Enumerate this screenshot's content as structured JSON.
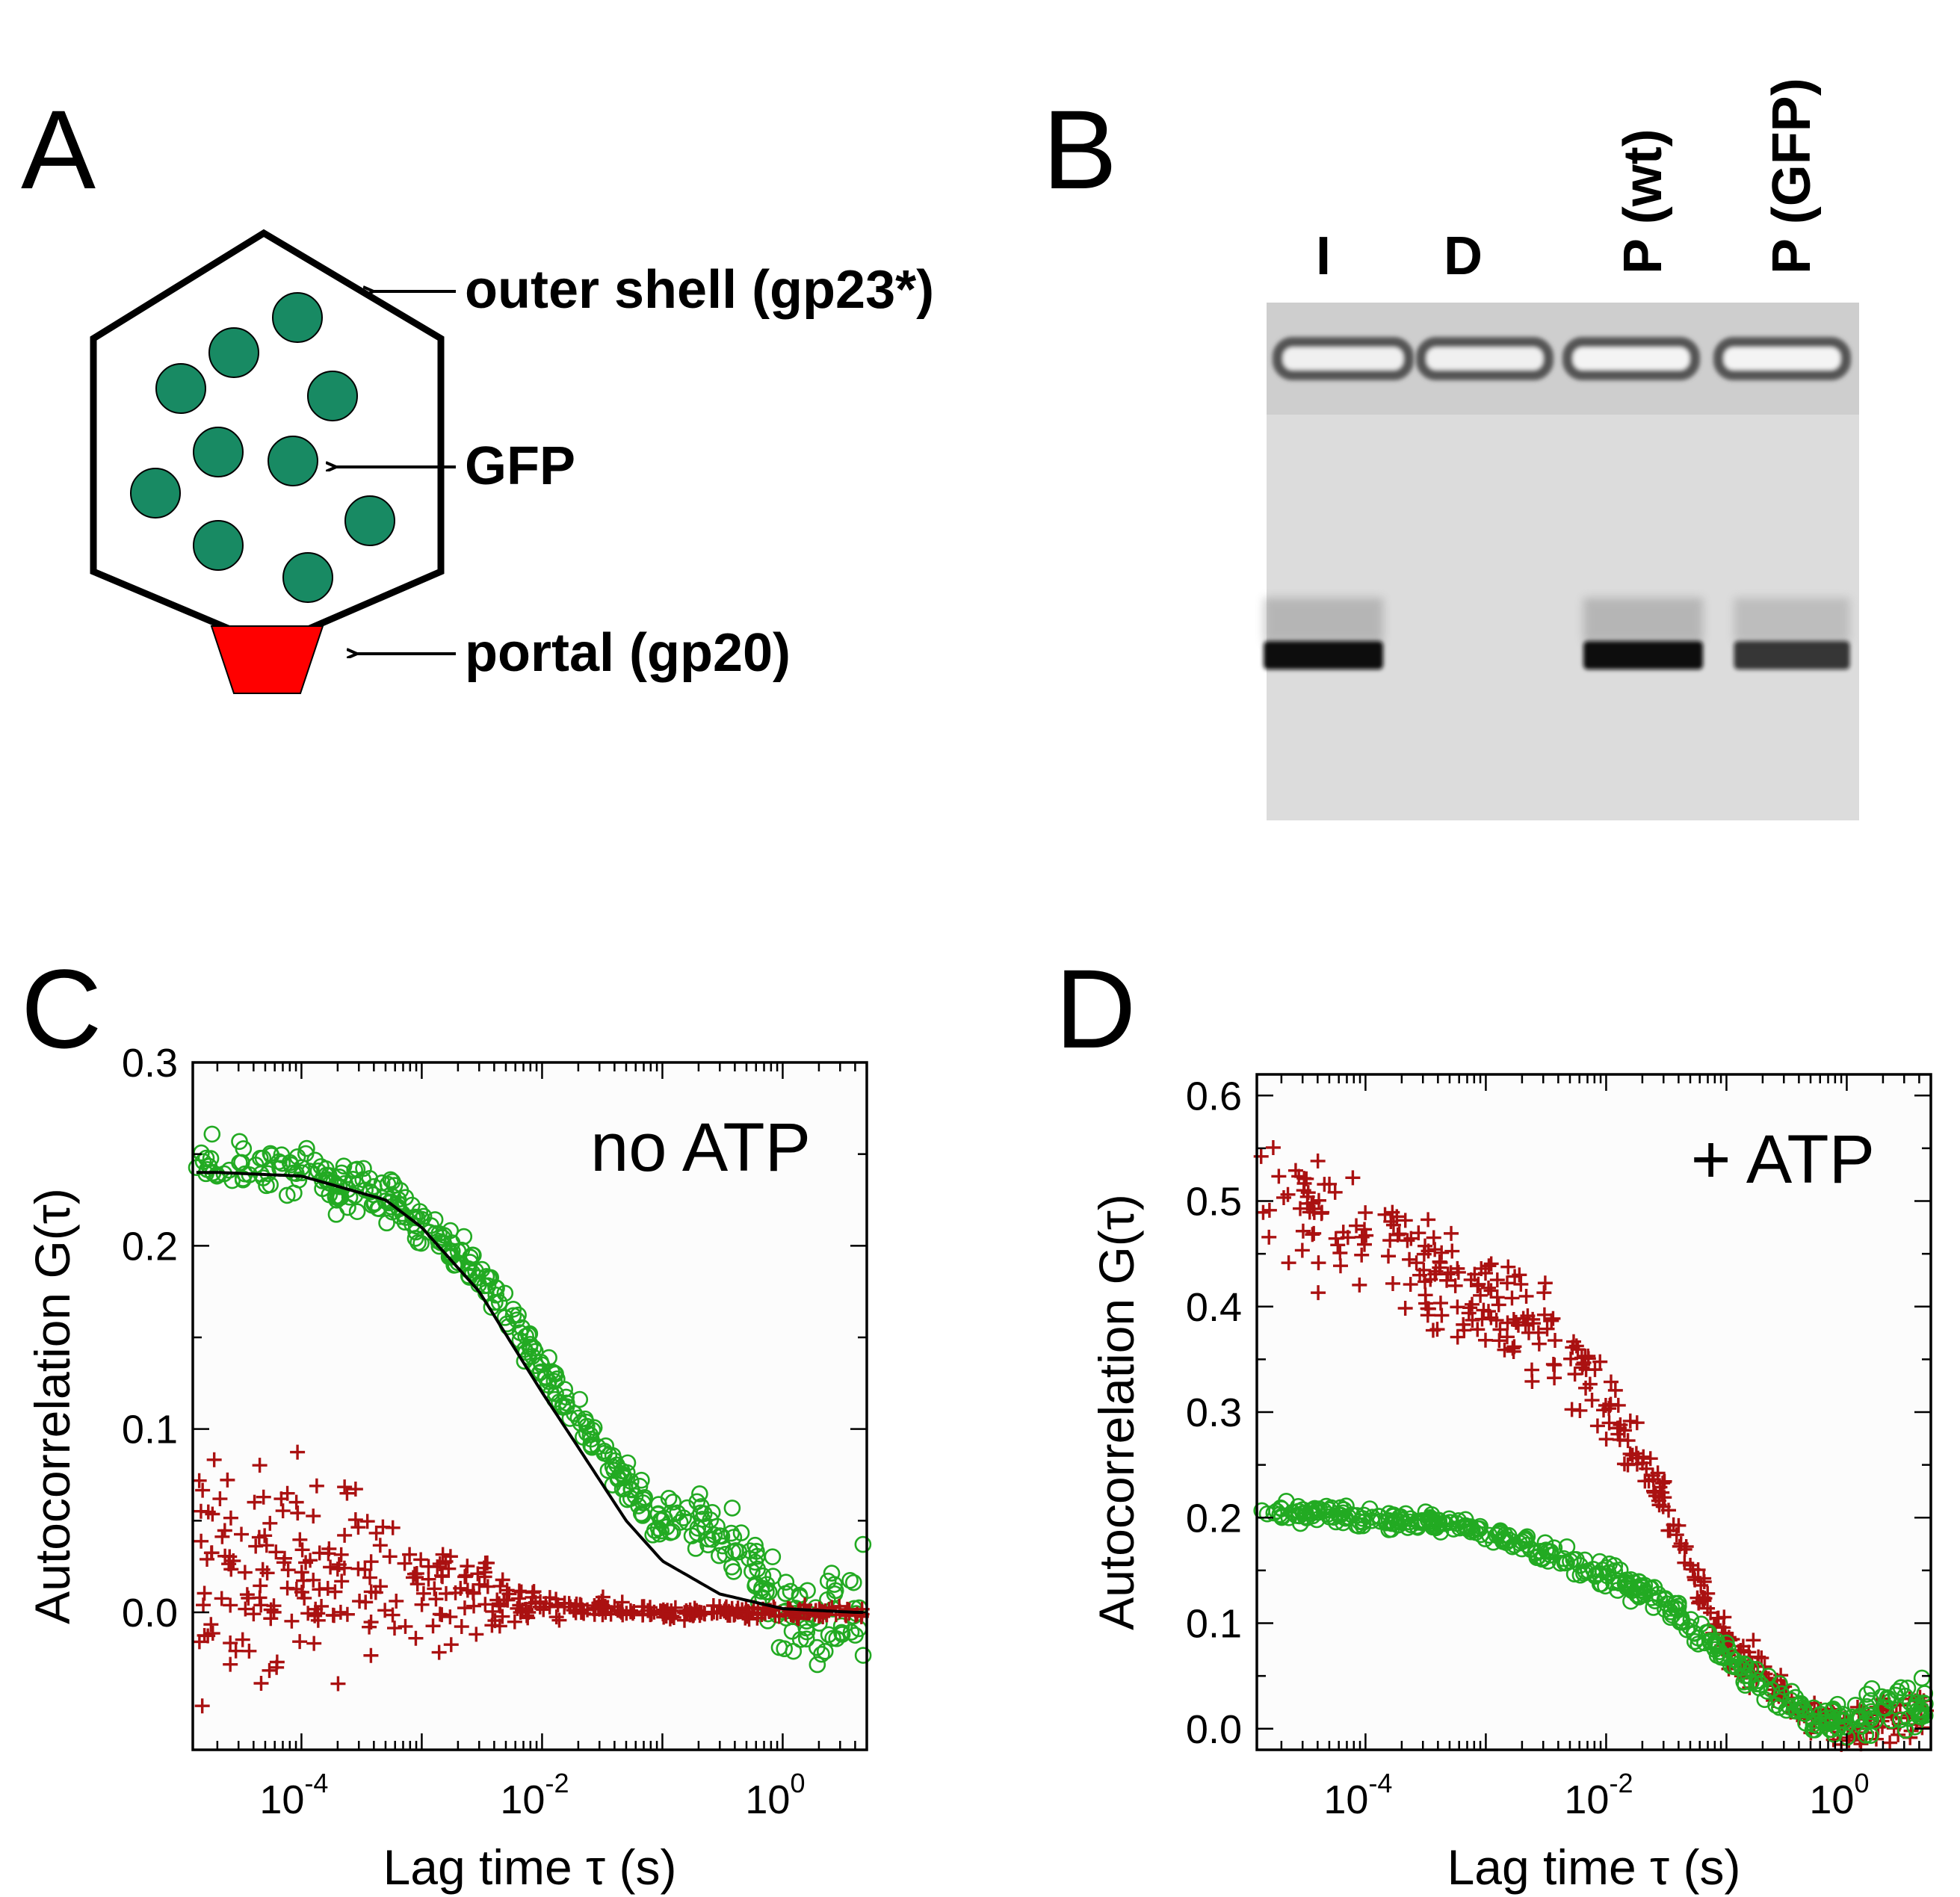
{
  "panels": {
    "a": {
      "letter": "A"
    },
    "b": {
      "letter": "B"
    },
    "c": {
      "letter": "C"
    },
    "d": {
      "letter": "D"
    }
  },
  "schematic": {
    "labels": {
      "outer_shell": "outer shell (gp23*)",
      "gfp": "GFP",
      "portal": "portal (gp20)"
    },
    "colors": {
      "gfp": "#188a63",
      "portal": "#ff0000",
      "outline": "#000000"
    }
  },
  "gel": {
    "lanes": [
      {
        "label": "I",
        "band": true,
        "band_intensity": 1.0
      },
      {
        "label": "D",
        "band": false,
        "band_intensity": 0.0
      },
      {
        "label": "P (wt)",
        "band": true,
        "band_intensity": 1.0
      },
      {
        "label": "P (GFP)",
        "band": true,
        "band_intensity": 0.8
      }
    ]
  },
  "chart_data": [
    {
      "panel": "C",
      "type": "scatter",
      "annotation": "no ATP",
      "xlabel": "Lag time τ (s)",
      "ylabel": "Autocorrelation G(τ)",
      "xscale": "log",
      "xlim": [
        1.25e-05,
        5
      ],
      "ylim": [
        -0.075,
        0.3
      ],
      "yticks": [
        "0.0",
        "0.1",
        "0.2",
        "0.3"
      ],
      "xticks": [
        {
          "base": "10",
          "exp": "-4",
          "value": 0.0001
        },
        {
          "base": "10",
          "exp": "-2",
          "value": 0.01
        },
        {
          "base": "10",
          "exp": "0",
          "value": 1
        }
      ],
      "series": [
        {
          "marker": "circle",
          "color": "#22aa22",
          "profile": [
            [
              2e-05,
              0.245
            ],
            [
              0.0001,
              0.24
            ],
            [
              0.0005,
              0.225
            ],
            [
              0.002,
              0.195
            ],
            [
              0.005,
              0.165
            ],
            [
              0.01,
              0.135
            ],
            [
              0.02,
              0.105
            ],
            [
              0.05,
              0.07
            ],
            [
              0.1,
              0.05
            ],
            [
              0.2,
              0.05
            ],
            [
              0.5,
              0.03
            ],
            [
              1,
              0.0
            ],
            [
              2,
              0.0
            ],
            [
              4,
              0.0
            ]
          ],
          "spread": [
            [
              2e-05,
              0.015
            ],
            [
              0.001,
              0.01
            ],
            [
              0.01,
              0.01
            ],
            [
              0.1,
              0.01
            ],
            [
              0.5,
              0.015
            ],
            [
              1,
              0.02
            ],
            [
              4,
              0.025
            ]
          ]
        },
        {
          "marker": "plus",
          "color": "#aa1111",
          "profile": [
            [
              2e-05,
              0.02
            ],
            [
              0.0001,
              0.02
            ],
            [
              0.001,
              0.015
            ],
            [
              0.01,
              0.005
            ],
            [
              0.1,
              0.0
            ],
            [
              4,
              0.0
            ]
          ],
          "spread": [
            [
              2e-05,
              0.06
            ],
            [
              0.0001,
              0.055
            ],
            [
              0.0005,
              0.04
            ],
            [
              0.001,
              0.025
            ],
            [
              0.005,
              0.012
            ],
            [
              0.01,
              0.006
            ],
            [
              0.1,
              0.003
            ],
            [
              4,
              0.003
            ]
          ]
        }
      ],
      "fit": {
        "color": "#000000",
        "points": [
          [
            2e-05,
            0.24
          ],
          [
            0.0001,
            0.238
          ],
          [
            0.0005,
            0.225
          ],
          [
            0.001,
            0.21
          ],
          [
            0.003,
            0.175
          ],
          [
            0.01,
            0.12
          ],
          [
            0.02,
            0.09
          ],
          [
            0.05,
            0.05
          ],
          [
            0.1,
            0.028
          ],
          [
            0.3,
            0.01
          ],
          [
            1,
            0.002
          ],
          [
            4,
            0.0
          ]
        ]
      }
    },
    {
      "panel": "D",
      "type": "scatter",
      "annotation": "+ ATP",
      "xlabel": "Lag time τ (s)",
      "ylabel": "Autocorrelation G(τ)",
      "xscale": "log",
      "xlim": [
        1.25e-05,
        5
      ],
      "ylim": [
        -0.02,
        0.62
      ],
      "yticks": [
        "0.0",
        "0.1",
        "0.2",
        "0.3",
        "0.4",
        "0.5",
        "0.6"
      ],
      "xticks": [
        {
          "base": "10",
          "exp": "-4",
          "value": 0.0001
        },
        {
          "base": "10",
          "exp": "-2",
          "value": 0.01
        },
        {
          "base": "10",
          "exp": "0",
          "value": 1
        }
      ],
      "series": [
        {
          "marker": "plus",
          "color": "#aa1111",
          "profile": [
            [
              2e-05,
              0.5
            ],
            [
              0.0001,
              0.47
            ],
            [
              0.0005,
              0.42
            ],
            [
              0.002,
              0.39
            ],
            [
              0.005,
              0.35
            ],
            [
              0.01,
              0.31
            ],
            [
              0.02,
              0.25
            ],
            [
              0.05,
              0.16
            ],
            [
              0.1,
              0.08
            ],
            [
              0.2,
              0.05
            ],
            [
              0.5,
              0.01
            ],
            [
              1,
              0.0
            ],
            [
              2,
              0.01
            ],
            [
              4,
              0.02
            ]
          ],
          "spread": [
            [
              2e-05,
              0.05
            ],
            [
              0.0005,
              0.05
            ],
            [
              0.002,
              0.04
            ],
            [
              0.01,
              0.03
            ],
            [
              0.05,
              0.02
            ],
            [
              1,
              0.015
            ],
            [
              4,
              0.02
            ]
          ]
        },
        {
          "marker": "circle",
          "color": "#22aa22",
          "profile": [
            [
              2e-05,
              0.205
            ],
            [
              0.0001,
              0.2
            ],
            [
              0.0005,
              0.195
            ],
            [
              0.002,
              0.175
            ],
            [
              0.01,
              0.145
            ],
            [
              0.03,
              0.12
            ],
            [
              0.1,
              0.07
            ],
            [
              0.2,
              0.04
            ],
            [
              0.5,
              0.01
            ],
            [
              1,
              0.005
            ],
            [
              2,
              0.02
            ],
            [
              4,
              0.025
            ]
          ],
          "spread": [
            [
              2e-05,
              0.008
            ],
            [
              0.001,
              0.008
            ],
            [
              0.01,
              0.01
            ],
            [
              0.1,
              0.01
            ],
            [
              1,
              0.015
            ],
            [
              4,
              0.02
            ]
          ]
        }
      ]
    }
  ]
}
